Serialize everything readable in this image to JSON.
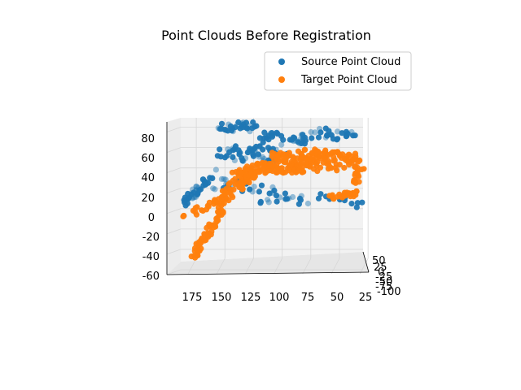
{
  "chart_data": {
    "type": "scatter",
    "projection": "3d",
    "title": "Point Clouds Before Registration",
    "xlabel": "",
    "ylabel": "",
    "zlabel": "",
    "grid": true,
    "legend_position": "top-right",
    "x_ticks": [
      "175",
      "150",
      "125",
      "100",
      "75",
      "50",
      "25"
    ],
    "y_ticks": [
      "50",
      "25",
      "0",
      "-25",
      "-50",
      "-75",
      "-100"
    ],
    "z_ticks": [
      "80",
      "60",
      "40",
      "20",
      "0",
      "-20",
      "-40",
      "-60"
    ],
    "xlim": [
      190,
      18
    ],
    "zlim": [
      -60,
      90
    ],
    "series": [
      {
        "name": "Source Point Cloud",
        "color": "#1f77b4",
        "segments": [
          {
            "from": [
              182,
              5
            ],
            "to": [
              150,
              42
            ],
            "spread": 4,
            "count": 40
          },
          {
            "from": [
              145,
              58
            ],
            "to": [
              95,
              60
            ],
            "spread": 8,
            "count": 55
          },
          {
            "from": [
              150,
              85
            ],
            "to": [
              118,
              85
            ],
            "spread": 5,
            "count": 30
          },
          {
            "from": [
              112,
              75
            ],
            "to": [
              70,
              72
            ],
            "spread": 6,
            "count": 35
          },
          {
            "from": [
              68,
              80
            ],
            "to": [
              30,
              75
            ],
            "spread": 5,
            "count": 25
          },
          {
            "from": [
              150,
              30
            ],
            "to": [
              100,
              25
            ],
            "spread": 6,
            "count": 25
          },
          {
            "from": [
              110,
              15
            ],
            "to": [
              70,
              12
            ],
            "spread": 6,
            "count": 18
          },
          {
            "from": [
              60,
              18
            ],
            "to": [
              25,
              10
            ],
            "spread": 5,
            "count": 15
          }
        ]
      },
      {
        "name": "Target Point Cloud",
        "color": "#ff7f0e",
        "segments": [
          {
            "from": [
              172,
              -45
            ],
            "to": [
              145,
              5
            ],
            "spread": 3,
            "count": 55
          },
          {
            "from": [
              178,
              0
            ],
            "to": [
              140,
              15
            ],
            "spread": 4,
            "count": 30
          },
          {
            "from": [
              145,
              15
            ],
            "to": [
              115,
              45
            ],
            "spread": 6,
            "count": 60
          },
          {
            "from": [
              135,
              35
            ],
            "to": [
              100,
              48
            ],
            "spread": 6,
            "count": 45
          },
          {
            "from": [
              100,
              50
            ],
            "to": [
              70,
              50
            ],
            "spread": 10,
            "count": 90
          },
          {
            "from": [
              75,
              55
            ],
            "to": [
              28,
              50
            ],
            "spread": 9,
            "count": 90
          },
          {
            "from": [
              50,
              15
            ],
            "to": [
              28,
              20
            ],
            "spread": 3,
            "count": 25
          },
          {
            "from": [
              28,
              28
            ],
            "to": [
              28,
              55
            ],
            "spread": 3,
            "count": 20
          }
        ]
      }
    ]
  }
}
